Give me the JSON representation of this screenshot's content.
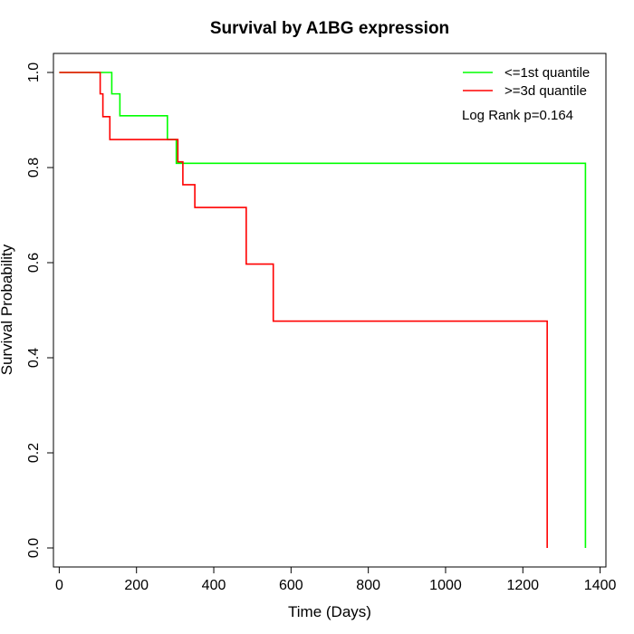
{
  "chart_data": {
    "type": "line",
    "title": "Survival by A1BG expression",
    "xlabel": "Time (Days)",
    "ylabel": "Survival Probability",
    "xlim": [
      -15,
      1415
    ],
    "ylim": [
      -0.04,
      1.04
    ],
    "xticks": [
      0,
      200,
      400,
      600,
      800,
      1000,
      1200,
      1400
    ],
    "yticks": [
      0.0,
      0.2,
      0.4,
      0.6,
      0.8,
      1.0
    ],
    "xtick_labels": [
      "0",
      "200",
      "400",
      "600",
      "800",
      "1000",
      "1200",
      "1400"
    ],
    "ytick_labels": [
      "0.0",
      "0.2",
      "0.4",
      "0.6",
      "0.8",
      "1.0"
    ],
    "legend_position": "top-right",
    "annotation": "Log Rank p=0.164",
    "series": [
      {
        "name": "<=1st quantile",
        "color": "#00ff00",
        "x": [
          0,
          136,
          157,
          280,
          303,
          1362,
          1362
        ],
        "y": [
          1.0,
          0.955,
          0.909,
          0.859,
          0.809,
          0.809,
          0.0
        ]
      },
      {
        "name": ">=3d quantile",
        "color": "#ff0000",
        "x": [
          0,
          106,
          113,
          131,
          282,
          307,
          320,
          351,
          484,
          554,
          1263,
          1263
        ],
        "y": [
          1.0,
          0.955,
          0.907,
          0.859,
          0.859,
          0.812,
          0.764,
          0.716,
          0.597,
          0.477,
          0.477,
          0.0
        ]
      }
    ]
  }
}
